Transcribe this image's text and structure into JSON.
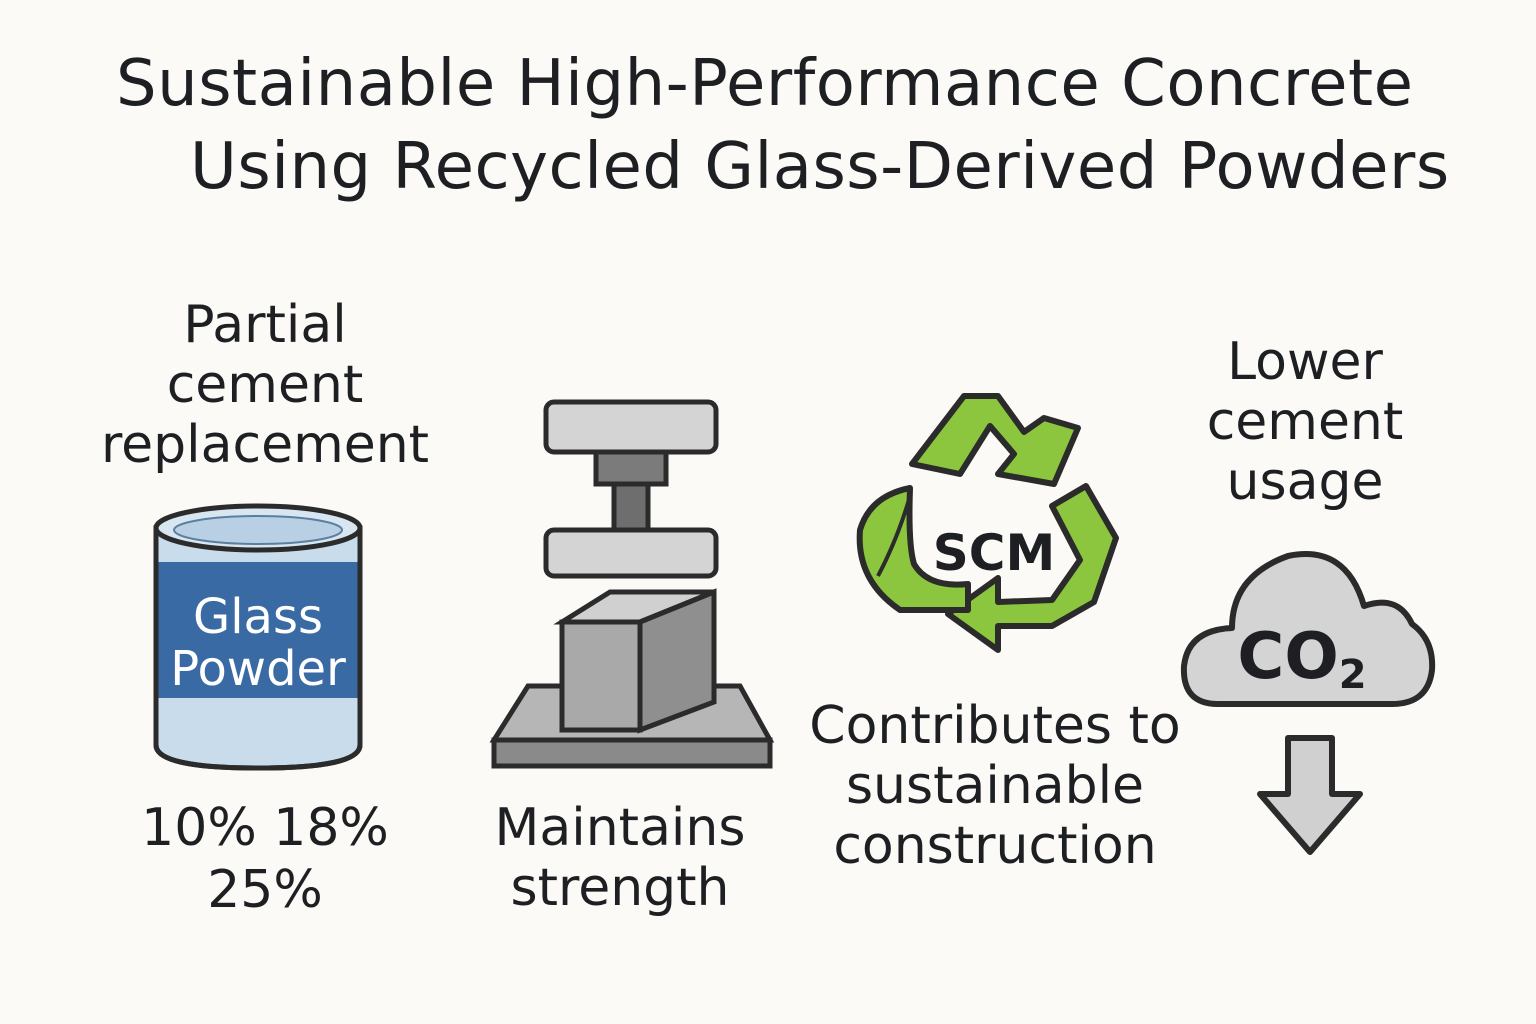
{
  "title": {
    "line1": "Sustainable High-Performance Concrete",
    "line2": "Using Recycled Glass-Derived Powders"
  },
  "panel1": {
    "heading": [
      "Partial",
      "cement",
      "replacement"
    ],
    "can_label": [
      "Glass",
      "Powder"
    ],
    "percentages_line1": "10% 18%",
    "percentages_line2": "25%"
  },
  "panel2": {
    "caption": [
      "Maintains",
      "strength"
    ]
  },
  "panel3": {
    "recycle_label": "SCM",
    "caption": [
      "Contributes to",
      "sustainable",
      "construction"
    ]
  },
  "panel4": {
    "heading": [
      "Lower",
      "cement",
      "usage"
    ],
    "cloud_label_main": "CO",
    "cloud_label_subscript": "2"
  },
  "colors": {
    "background": "#fbfaf6",
    "text": "#1d1f22",
    "can_band": "#3a6aa3",
    "can_body": "#c9dcec",
    "recycle_green": "#8cc63f",
    "gray_light": "#d4d4d4",
    "gray_mid": "#a9a9a9",
    "gray_dark": "#6e6e6e"
  },
  "icons": [
    "glass-powder-can-icon",
    "compression-press-icon",
    "recycle-arrows-icon",
    "co2-cloud-icon",
    "down-arrow-icon"
  ]
}
